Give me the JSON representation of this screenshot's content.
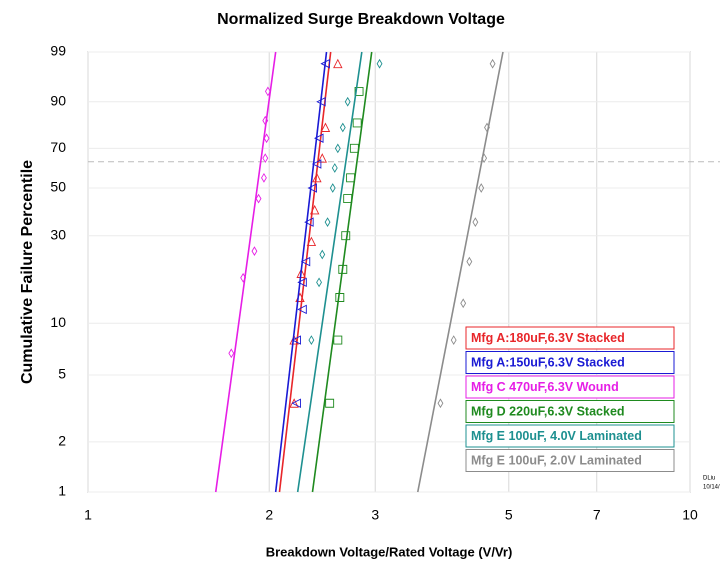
{
  "chart_data": {
    "type": "probability",
    "title": "Normalized Surge Breakdown Voltage",
    "x_label": "Breakdown Voltage/Rated Voltage (V/Vr)",
    "y_label": "Cumulative Failure Percentile",
    "xscale": "log",
    "yscale": "weibull",
    "xlim": [
      1,
      10
    ],
    "xticks": [
      1,
      2,
      3,
      5,
      7,
      10
    ],
    "ylim": [
      1,
      99
    ],
    "yticks": [
      1,
      2,
      5,
      10,
      30,
      50,
      70,
      90,
      99
    ],
    "grid": true,
    "reference_line": 63.2,
    "legend": "lower right",
    "annotations": [
      "DLiu",
      "10/14/"
    ],
    "series": [
      {
        "name": "Mfg A:180uF,6.3V Stacked",
        "color": "#e8262a",
        "marker": "triangle-up",
        "x": [
          2.2,
          2.2,
          2.25,
          2.26,
          2.35,
          2.38,
          2.4,
          2.45,
          2.48,
          2.6
        ],
        "y": [
          3.4,
          8,
          14,
          19,
          28,
          40,
          55,
          65,
          80,
          98
        ],
        "fit_x": [
          2.08,
          2.53
        ],
        "fit_y": [
          1,
          99
        ]
      },
      {
        "name": "Mfg A:150uF,6.3V Stacked",
        "color": "#1a1ad4",
        "marker": "triangle-left",
        "x": [
          2.22,
          2.22,
          2.27,
          2.27,
          2.3,
          2.33,
          2.36,
          2.4,
          2.42,
          2.44,
          2.48
        ],
        "y": [
          3.4,
          8,
          12,
          17,
          22,
          35,
          50,
          62,
          75,
          90,
          98
        ],
        "fit_x": [
          2.05,
          2.49
        ],
        "fit_y": [
          1,
          99
        ]
      },
      {
        "name": "Mfg C 470uF,6.3V Wound",
        "color": "#e61ee6",
        "marker": "diamond",
        "x": [
          1.73,
          1.81,
          1.89,
          1.92,
          1.96,
          1.97,
          1.98,
          1.97,
          1.99
        ],
        "y": [
          6.7,
          18,
          25,
          45,
          55,
          65,
          75,
          83,
          93
        ],
        "fit_x": [
          1.63,
          2.05
        ],
        "fit_y": [
          1,
          99
        ]
      },
      {
        "name": "Mfg D 220uF,6.3V Stacked",
        "color": "#1f8a1f",
        "marker": "square",
        "x": [
          2.52,
          2.6,
          2.62,
          2.65,
          2.68,
          2.7,
          2.73,
          2.77,
          2.8,
          2.82
        ],
        "y": [
          3.4,
          8,
          14,
          20,
          30,
          45,
          55,
          70,
          82,
          93
        ],
        "fit_x": [
          2.36,
          2.96
        ],
        "fit_y": [
          1,
          99
        ]
      },
      {
        "name": "Mfg E 100uF, 4.0V Laminated",
        "color": "#1e9090",
        "marker": "diamond",
        "x": [
          2.35,
          2.42,
          2.45,
          2.5,
          2.55,
          2.57,
          2.6,
          2.65,
          2.7,
          3.05
        ],
        "y": [
          8,
          17,
          24,
          35,
          50,
          60,
          70,
          80,
          90,
          98
        ],
        "fit_x": [
          2.23,
          2.85
        ],
        "fit_y": [
          1,
          99
        ]
      },
      {
        "name": "Mfg E 100uF, 2.0V Laminated",
        "color": "#8c8c8c",
        "marker": "diamond",
        "x": [
          3.85,
          4.05,
          4.2,
          4.3,
          4.4,
          4.5,
          4.55,
          4.6,
          4.7
        ],
        "y": [
          3.4,
          8,
          13,
          22,
          35,
          50,
          65,
          80,
          98
        ],
        "fit_x": [
          3.53,
          4.89
        ],
        "fit_y": [
          1,
          99
        ]
      }
    ]
  }
}
